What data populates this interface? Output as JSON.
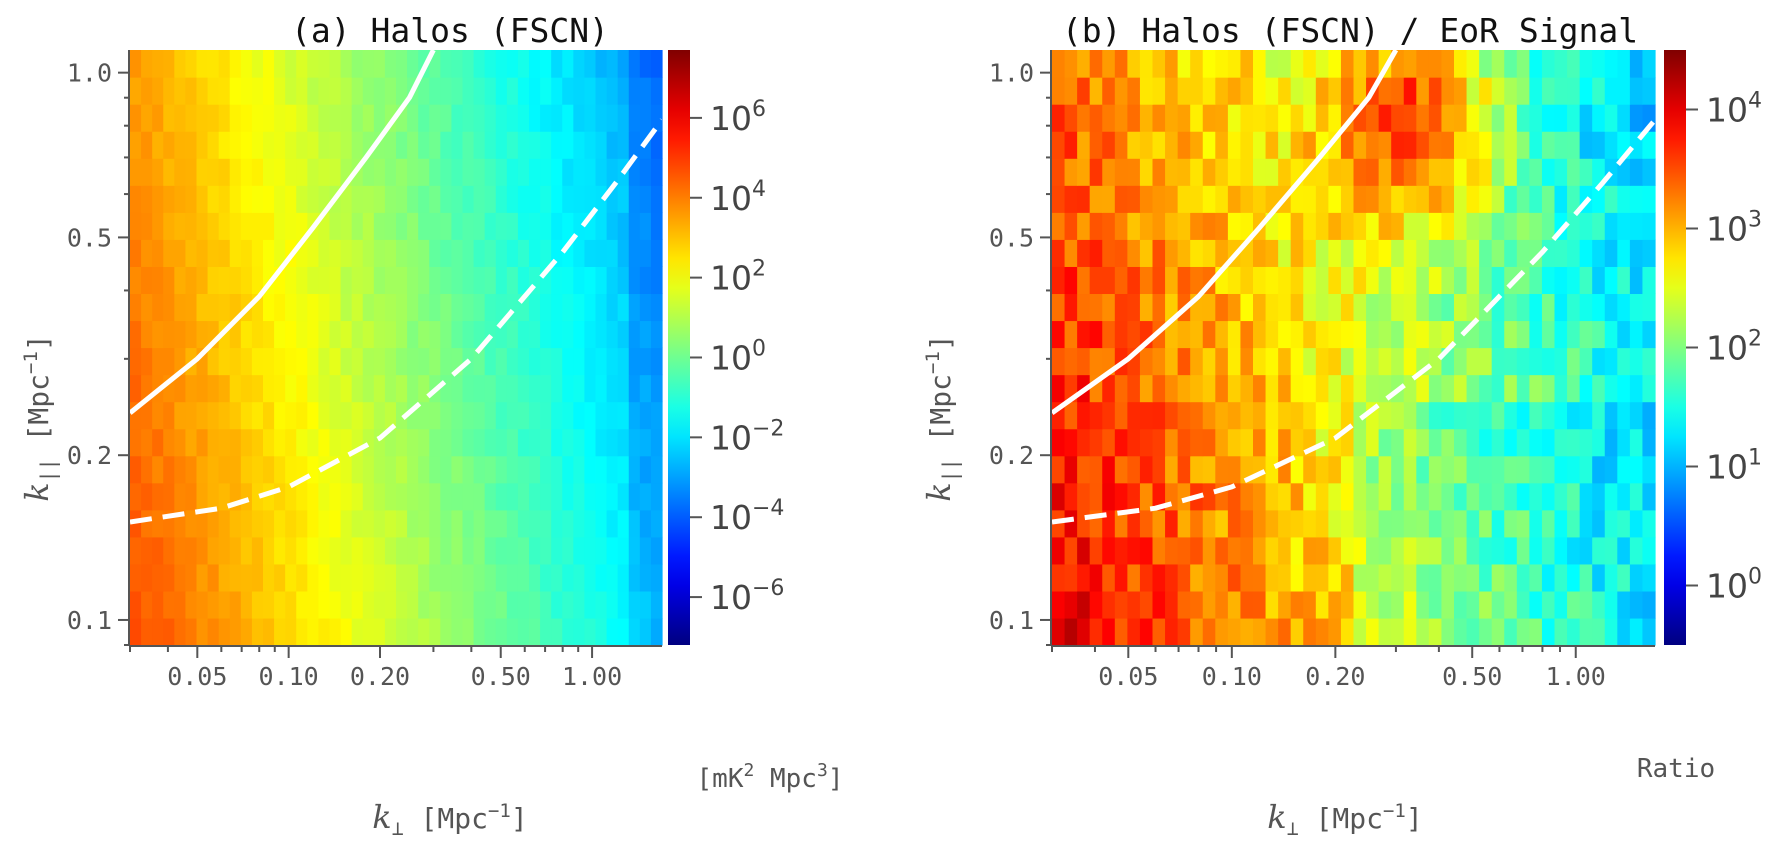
{
  "chart_data": [
    {
      "type": "heatmap",
      "title": "(a) Halos (FSCN)",
      "xlabel": "k_⊥ [Mpc^-1]",
      "ylabel": "k_|| [Mpc^-1]",
      "xscale": "log",
      "yscale": "log",
      "xlim": [
        0.03,
        1.7
      ],
      "ylim": [
        0.09,
        1.1
      ],
      "xticks": [
        0.05,
        0.1,
        0.2,
        0.5,
        1.0
      ],
      "xtick_labels": [
        "0.05",
        "0.10",
        "0.20",
        "0.50",
        "1.00"
      ],
      "yticks": [
        0.1,
        0.2,
        0.5,
        1.0
      ],
      "ytick_labels": [
        "0.1",
        "0.2",
        "0.5",
        "1.0"
      ],
      "colorbar": {
        "scale": "log",
        "label": "[mK² Mpc³]",
        "range_log10": [
          -7.2,
          7.7
        ],
        "ticks_log10": [
          6,
          4,
          2,
          0,
          -2,
          -4,
          -6
        ],
        "colormap": "jet"
      },
      "heatmap_model": {
        "log10_value_at_low_k_perp": 4.8,
        "log10_value_at_high_k_perp": -2.3,
        "k_par_dependence": "weak, slightly lower at higher k_||"
      },
      "overlays": [
        {
          "name": "solid white curve",
          "style": "solid",
          "color": "#ffffff",
          "x": [
            0.03,
            0.05,
            0.08,
            0.12,
            0.18,
            0.25,
            0.3
          ],
          "y": [
            0.239,
            0.3,
            0.39,
            0.52,
            0.7,
            0.9,
            1.1
          ]
        },
        {
          "name": "dashed white curve",
          "style": "dashed",
          "color": "#ffffff",
          "x": [
            0.03,
            0.06,
            0.1,
            0.2,
            0.4,
            0.8,
            1.2,
            1.7
          ],
          "y": [
            0.151,
            0.16,
            0.175,
            0.215,
            0.3,
            0.47,
            0.63,
            0.82
          ]
        }
      ]
    },
    {
      "type": "heatmap",
      "title": "(b) Halos (FSCN) / EoR Signal",
      "xlabel": "k_⊥ [Mpc^-1]",
      "ylabel": "k_|| [Mpc^-1]",
      "xscale": "log",
      "yscale": "log",
      "xlim": [
        0.03,
        1.7
      ],
      "ylim": [
        0.09,
        1.1
      ],
      "xticks": [
        0.05,
        0.1,
        0.2,
        0.5,
        1.0
      ],
      "xtick_labels": [
        "0.05",
        "0.10",
        "0.20",
        "0.50",
        "1.00"
      ],
      "yticks": [
        0.1,
        0.2,
        0.5,
        1.0
      ],
      "ytick_labels": [
        "0.1",
        "0.2",
        "0.5",
        "1.0"
      ],
      "colorbar": {
        "scale": "log",
        "label": "Ratio",
        "range_log10": [
          -0.5,
          4.5
        ],
        "ticks_log10": [
          4,
          3,
          2,
          1,
          0
        ],
        "colormap": "jet"
      },
      "heatmap_model": {
        "log10_value_at_low_k_perp_low_k_par": 4.0,
        "log10_value_at_high_k_perp": 1.3,
        "hotspot": {
          "k_perp": 0.35,
          "k_par": 0.9,
          "log10_value": 3.9
        }
      },
      "overlays": [
        {
          "name": "solid white curve",
          "style": "solid",
          "color": "#ffffff",
          "x": [
            0.03,
            0.05,
            0.08,
            0.12,
            0.18,
            0.25,
            0.3
          ],
          "y": [
            0.239,
            0.3,
            0.39,
            0.52,
            0.7,
            0.9,
            1.1
          ]
        },
        {
          "name": "dashed white curve",
          "style": "dashed",
          "color": "#ffffff",
          "x": [
            0.03,
            0.06,
            0.1,
            0.2,
            0.4,
            0.8,
            1.2,
            1.7
          ],
          "y": [
            0.151,
            0.16,
            0.175,
            0.215,
            0.3,
            0.47,
            0.63,
            0.82
          ]
        }
      ]
    }
  ],
  "labels": {
    "a": {
      "title": "(a) Halos (FSCN)",
      "ylabel_main": "k",
      "ylabel_sub": "||",
      "ylabel_unit": " [Mpc",
      "ylabel_exp": "−1",
      "ylabel_close": "]",
      "xlabel_main": "k",
      "xlabel_sub": "⊥",
      "xlabel_unit": " [Mpc",
      "xlabel_exp": "−1",
      "xlabel_close": "]",
      "cb_unit_pre": "[mK",
      "cb_unit_exp1": "2",
      "cb_unit_mid": " Mpc",
      "cb_unit_exp2": "3",
      "cb_unit_post": "]"
    },
    "b": {
      "title": "(b) Halos (FSCN) / EoR Signal",
      "ylabel_main": "k",
      "ylabel_sub": "||",
      "ylabel_unit": " [Mpc",
      "ylabel_exp": "−1",
      "ylabel_close": "]",
      "xlabel_main": "k",
      "xlabel_sub": "⊥",
      "xlabel_unit": " [Mpc",
      "xlabel_exp": "−1",
      "xlabel_close": "]",
      "cb_unit": "Ratio"
    }
  }
}
